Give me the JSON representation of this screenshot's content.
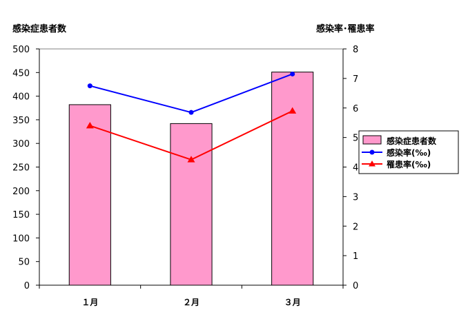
{
  "chart_data": {
    "type": "bar",
    "categories": [
      "１月",
      "２月",
      "３月"
    ],
    "series": [
      {
        "name": "感染症患者数",
        "type": "bar",
        "axis": "left",
        "color": "#ff99cc",
        "values": [
          382,
          342,
          451
        ]
      },
      {
        "name": "感染率(‰)",
        "type": "line",
        "axis": "right",
        "color": "#0000ff",
        "marker": "circle",
        "values": [
          6.75,
          5.85,
          7.15
        ]
      },
      {
        "name": "罹患率(‰)",
        "type": "line",
        "axis": "right",
        "color": "#ff0000",
        "marker": "triangle",
        "values": [
          5.4,
          4.25,
          5.9
        ]
      }
    ],
    "ylabel_left": "感染症患者数",
    "ylabel_right": "感染率･罹患率",
    "ylim_left": [
      0,
      500
    ],
    "ylim_right": [
      0,
      8
    ],
    "yticks_left": [
      "0",
      "50",
      "100",
      "150",
      "200",
      "250",
      "300",
      "350",
      "400",
      "450",
      "500"
    ],
    "yticks_right": [
      "0",
      "1",
      "2",
      "3",
      "4",
      "5",
      "6",
      "7",
      "8"
    ],
    "grid": false,
    "legend_position": "right"
  }
}
